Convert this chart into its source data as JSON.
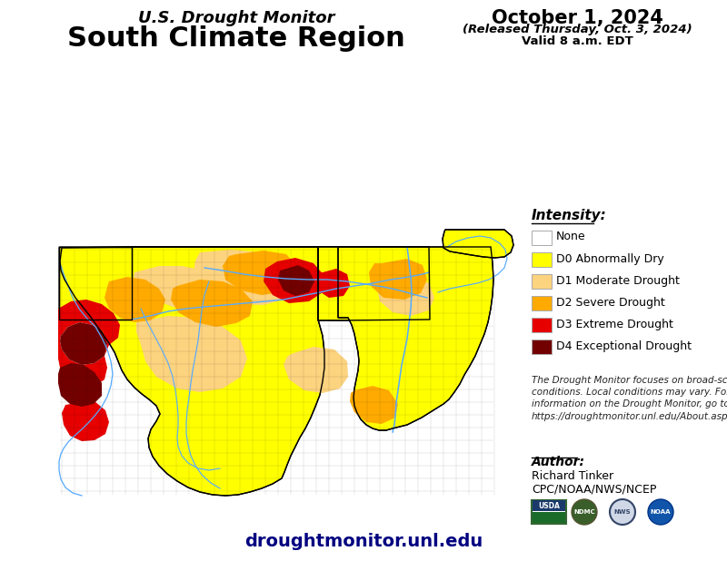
{
  "title_line1": "U.S. Drought Monitor",
  "title_line2": "South Climate Region",
  "date_line1": "October 1, 2024",
  "date_line2": "(Released Thursday, Oct. 3, 2024)",
  "date_line3": "Valid 8 a.m. EDT",
  "legend_title": "Intensity:",
  "legend_items": [
    {
      "label": "None",
      "color": "#FFFFFF",
      "edgecolor": "#aaaaaa"
    },
    {
      "label": "D0 Abnormally Dry",
      "color": "#FFFF00",
      "edgecolor": "#aaaaaa"
    },
    {
      "label": "D1 Moderate Drought",
      "color": "#FCD37F",
      "edgecolor": "#aaaaaa"
    },
    {
      "label": "D2 Severe Drought",
      "color": "#FFAA00",
      "edgecolor": "#aaaaaa"
    },
    {
      "label": "D3 Extreme Drought",
      "color": "#E60000",
      "edgecolor": "#aaaaaa"
    },
    {
      "label": "D4 Exceptional Drought",
      "color": "#730000",
      "edgecolor": "#aaaaaa"
    }
  ],
  "disclaimer_text": "The Drought Monitor focuses on broad-scale\nconditions. Local conditions may vary. For more\ninformation on the Drought Monitor, go to\nhttps://droughtmonitor.unl.edu/About.aspx",
  "author_label": "Author:",
  "author_name": "Richard Tinker",
  "author_org": "CPC/NOAA/NWS/NCEP",
  "website": "droughtmonitor.unl.edu",
  "bg_color": "#FFFFFF",
  "title_color": "#000000",
  "date_color": "#000000"
}
